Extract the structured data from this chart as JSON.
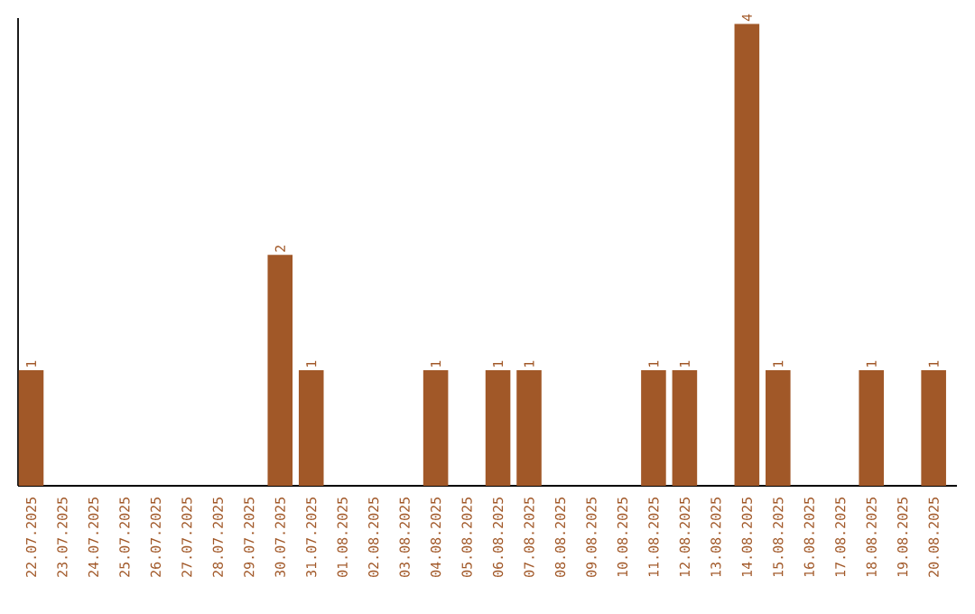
{
  "chart_data": {
    "type": "bar",
    "categories": [
      "22.07.2025",
      "23.07.2025",
      "24.07.2025",
      "25.07.2025",
      "26.07.2025",
      "27.07.2025",
      "28.07.2025",
      "29.07.2025",
      "30.07.2025",
      "31.07.2025",
      "01.08.2025",
      "02.08.2025",
      "03.08.2025",
      "04.08.2025",
      "05.08.2025",
      "06.08.2025",
      "07.08.2025",
      "08.08.2025",
      "09.08.2025",
      "10.08.2025",
      "11.08.2025",
      "12.08.2025",
      "13.08.2025",
      "14.08.2025",
      "15.08.2025",
      "16.08.2025",
      "17.08.2025",
      "18.08.2025",
      "19.08.2025",
      "20.08.2025"
    ],
    "values": [
      1,
      0,
      0,
      0,
      0,
      0,
      0,
      0,
      2,
      1,
      0,
      0,
      0,
      1,
      0,
      1,
      1,
      0,
      0,
      0,
      1,
      1,
      0,
      4,
      1,
      0,
      0,
      1,
      0,
      1
    ],
    "value_labels": [
      "1",
      null,
      null,
      null,
      null,
      null,
      null,
      null,
      "2",
      "1",
      null,
      null,
      null,
      "1",
      null,
      "1",
      "1",
      null,
      null,
      null,
      "1",
      "1",
      null,
      "4",
      "1",
      null,
      null,
      "1",
      null,
      "1"
    ],
    "color": "#a15828",
    "ylim": [
      0,
      4.05
    ],
    "tick_labels": "x",
    "grid": false
  }
}
